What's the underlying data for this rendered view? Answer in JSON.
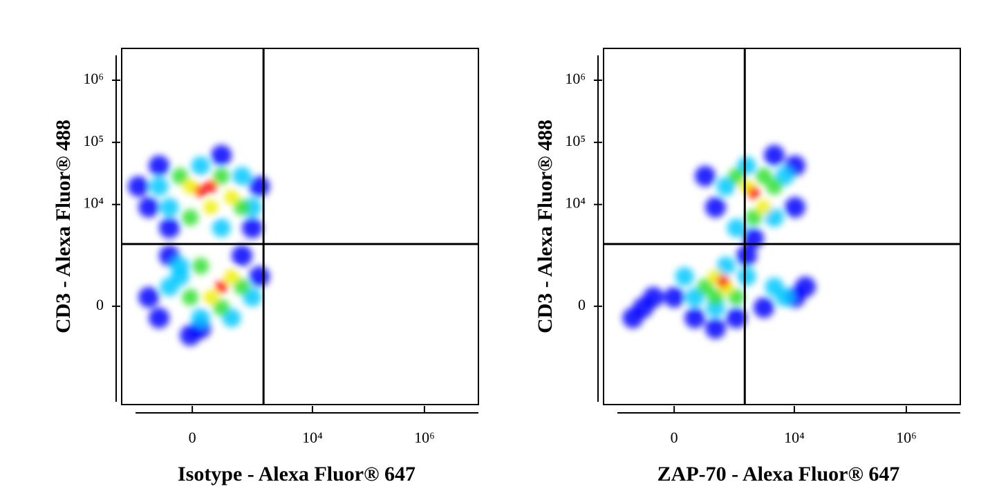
{
  "chart_data": [
    {
      "type": "scatter",
      "x_label": "Isotype - Alexa Fluor® 647",
      "y_label": "CD3 - Alexa Fluor® 488",
      "xscale": "biex",
      "x_linear_width": 143,
      "yscale": "biex",
      "y_linear_width": 461,
      "xlim": [
        -1300,
        9200000
      ],
      "ylim": [
        -8800,
        3250000
      ],
      "xticks": [
        0,
        {
          "value": 10000,
          "label": "10⁴"
        },
        {
          "value": 1000000,
          "label": "10⁶"
        }
      ],
      "yticks": [
        0,
        {
          "value": 10000,
          "label": "10⁴"
        },
        {
          "value": 100000,
          "label": "10⁵"
        },
        {
          "value": 1000000,
          "label": "10⁶"
        }
      ],
      "gate": {
        "x": 1334,
        "y": 2290
      },
      "series": [
        {
          "color": "#0000ff",
          "x": [
            -648,
            -416,
            -262,
            215,
            1125,
            -155,
            839,
            -416,
            -262,
            50,
            1125,
            -155,
            543,
            -12
          ],
          "values": [
            19500,
            9000,
            42000,
            61800,
            19500,
            4180,
            4180,
            156,
            -207,
            -425,
            617,
            1460,
            1460,
            -600
          ]
        },
        {
          "color": "#00c8ff",
          "x": [
            -262,
            -155,
            50,
            543,
            839,
            215,
            -155,
            -76,
            839,
            50,
            346,
            -76
          ],
          "values": [
            19500,
            9000,
            42000,
            28600,
            9000,
            4180,
            360,
            617,
            156,
            -207,
            -207,
            970
          ]
        },
        {
          "color": "#30e030",
          "x": [
            -76,
            215,
            543,
            -12,
            50,
            543,
            -12,
            215
          ],
          "values": [
            28600,
            28600,
            9000,
            6150,
            970,
            360,
            156,
            -24
          ]
        },
        {
          "color": "#f0f000",
          "x": [
            -12,
            346,
            121,
            346,
            121
          ],
          "values": [
            19500,
            13200,
            9000,
            617,
            156
          ]
        },
        {
          "color": "#ff0000",
          "x": [
            121,
            215,
            50
          ],
          "values": [
            19500,
            360,
            16500
          ]
        }
      ]
    },
    {
      "type": "scatter",
      "x_label": "ZAP-70 - Alexa Fluor® 647",
      "y_label": "CD3 - Alexa Fluor® 488",
      "xscale": "biex",
      "x_linear_width": 143,
      "yscale": "biex",
      "y_linear_width": 461,
      "xlim": [
        -1300,
        9200000
      ],
      "ylim": [
        -8800,
        3250000
      ],
      "xticks": [
        0,
        {
          "value": 10000,
          "label": "10⁴"
        },
        {
          "value": 1000000,
          "label": "10⁶"
        }
      ],
      "yticks": [
        0,
        {
          "value": 10000,
          "label": "10⁴"
        },
        {
          "value": 100000,
          "label": "10⁵"
        },
        {
          "value": 1000000,
          "label": "10⁶"
        }
      ],
      "gate": {
        "x": 1300,
        "y": 2290
      },
      "series": [
        {
          "color": "#0000ff",
          "x": [
            378,
            10300,
            4390,
            10300,
            236,
            0,
            -137,
            -236,
            137,
            10300,
            2860,
            917,
            -378,
            378,
            15800,
            1406,
            1870
          ],
          "values": [
            9000,
            42000,
            61800,
            9000,
            28600,
            156,
            156,
            -24,
            -207,
            156,
            -24,
            -207,
            -207,
            -425,
            360,
            1460,
            2830
          ]
        },
        {
          "color": "#00c8ff",
          "x": [
            593,
            6720,
            4390,
            917,
            137,
            1406,
            6720,
            4390,
            63,
            378,
            593,
            1406
          ],
          "values": [
            19500,
            28600,
            6150,
            4180,
            156,
            617,
            156,
            360,
            617,
            -24,
            970,
            42000
          ]
        },
        {
          "color": "#30e030",
          "x": [
            917,
            4390,
            1870,
            236,
            917,
            378,
            2860
          ],
          "values": [
            28600,
            19500,
            6150,
            360,
            156,
            156,
            28600
          ]
        },
        {
          "color": "#f0f000",
          "x": [
            1406,
            2860,
            593,
            378
          ],
          "values": [
            19500,
            9000,
            360,
            617
          ]
        },
        {
          "color": "#ff0000",
          "x": [
            1870,
            525
          ],
          "values": [
            15300,
            490
          ]
        }
      ]
    }
  ]
}
